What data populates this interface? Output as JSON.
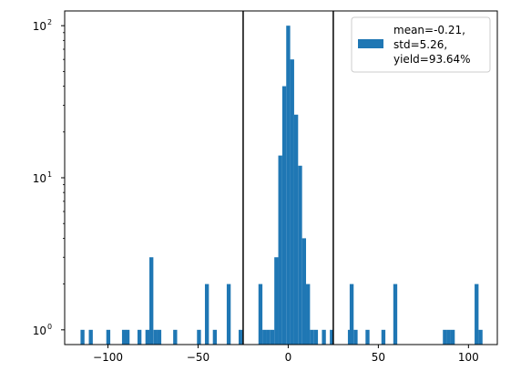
{
  "chart_data": {
    "type": "bar",
    "subtype": "histogram",
    "title": "",
    "xlabel": "",
    "ylabel": "",
    "yscale": "log",
    "xlim": [
      -124,
      116
    ],
    "ylim": [
      0.8,
      125
    ],
    "bin_width": 2.2,
    "bar_color": "#1f77b4",
    "xticks": [
      -100,
      -50,
      0,
      50,
      100
    ],
    "xtick_labels": [
      "−100",
      "−50",
      "0",
      "50",
      "100"
    ],
    "yticks": [
      {
        "value": 1,
        "base": "10",
        "exp": "0"
      },
      {
        "value": 10,
        "base": "10",
        "exp": "1"
      },
      {
        "value": 100,
        "base": "10",
        "exp": "2"
      }
    ],
    "vlines": [
      -25,
      25
    ],
    "vline_color": "#000000",
    "legend": {
      "placement": "upper right",
      "lines": [
        "mean=-0.21,",
        "std=5.26,",
        "yield=93.64%"
      ]
    },
    "bins": [
      {
        "x": -114.1,
        "count": 1
      },
      {
        "x": -109.5,
        "count": 1
      },
      {
        "x": -99.8,
        "count": 1
      },
      {
        "x": -91.1,
        "count": 1
      },
      {
        "x": -89.1,
        "count": 1
      },
      {
        "x": -82.5,
        "count": 1
      },
      {
        "x": -78.1,
        "count": 1
      },
      {
        "x": -75.9,
        "count": 3
      },
      {
        "x": -73.6,
        "count": 1
      },
      {
        "x": -71.5,
        "count": 1
      },
      {
        "x": -62.7,
        "count": 1
      },
      {
        "x": -49.5,
        "count": 1
      },
      {
        "x": -45.1,
        "count": 2
      },
      {
        "x": -40.7,
        "count": 1
      },
      {
        "x": -33.0,
        "count": 2
      },
      {
        "x": -26.4,
        "count": 1
      },
      {
        "x": -15.4,
        "count": 2
      },
      {
        "x": -13.2,
        "count": 1
      },
      {
        "x": -11.0,
        "count": 1
      },
      {
        "x": -8.8,
        "count": 1
      },
      {
        "x": -6.6,
        "count": 3
      },
      {
        "x": -4.4,
        "count": 14
      },
      {
        "x": -2.2,
        "count": 40
      },
      {
        "x": 0.0,
        "count": 100
      },
      {
        "x": 2.2,
        "count": 60
      },
      {
        "x": 4.4,
        "count": 26
      },
      {
        "x": 6.6,
        "count": 12
      },
      {
        "x": 8.8,
        "count": 4
      },
      {
        "x": 11.0,
        "count": 2
      },
      {
        "x": 13.2,
        "count": 1
      },
      {
        "x": 15.4,
        "count": 1
      },
      {
        "x": 19.8,
        "count": 1
      },
      {
        "x": 24.2,
        "count": 1
      },
      {
        "x": 34.2,
        "count": 1
      },
      {
        "x": 35.2,
        "count": 2
      },
      {
        "x": 37.4,
        "count": 1
      },
      {
        "x": 44.0,
        "count": 1
      },
      {
        "x": 52.8,
        "count": 1
      },
      {
        "x": 59.4,
        "count": 2
      },
      {
        "x": 86.9,
        "count": 1
      },
      {
        "x": 89.1,
        "count": 1
      },
      {
        "x": 91.3,
        "count": 1
      },
      {
        "x": 104.5,
        "count": 2
      },
      {
        "x": 106.7,
        "count": 1
      }
    ]
  }
}
